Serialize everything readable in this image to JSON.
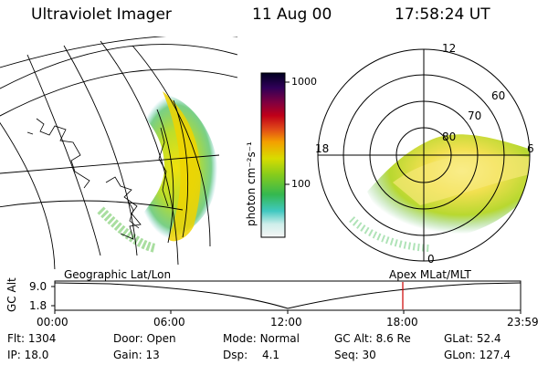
{
  "header": {
    "instrument": "Ultraviolet Imager",
    "date": "11 Aug 00",
    "time": "17:58:24 UT"
  },
  "colorbar": {
    "unit_label": "photon cm⁻²s⁻¹",
    "ticks": [
      "1000",
      "100"
    ],
    "scale": "log"
  },
  "left_panel": {
    "label": "Geographic Lat/Lon"
  },
  "right_panel": {
    "label": "Apex  MLat/MLT",
    "mlt_labels": [
      "12",
      "18",
      "6",
      "0"
    ],
    "lat_labels": [
      "60",
      "70",
      "80"
    ]
  },
  "altitude_plot": {
    "ylabel": "GC Alt",
    "yticks": [
      "9.0",
      "1.8"
    ],
    "xticks": [
      "00:00",
      "06:00",
      "12:00",
      "18:00",
      "23:59"
    ],
    "marker_time": "17:58"
  },
  "status": {
    "flt_label": "Flt:",
    "flt_value": "1304",
    "ip_label": "IP:",
    "ip_value": "18.0",
    "door_label": "Door:",
    "door_value": "Open",
    "gain_label": "Gain:",
    "gain_value": "13",
    "mode_label": "Mode:",
    "mode_value": "Normal",
    "dsp_label": "Dsp:",
    "dsp_value": "4.1",
    "gcalt_label": "GC Alt:",
    "gcalt_value": "8.6 Re",
    "seq_label": "Seq:",
    "seq_value": "30",
    "glat_label": "GLat:",
    "glat_value": "52.4",
    "glon_label": "GLon:",
    "glon_value": "127.4"
  },
  "colors": {
    "background": "#ffffff",
    "marker": "#cc0000",
    "ramp": [
      "#f4f4f4",
      "#bfe8e2",
      "#40c8c0",
      "#3cb84c",
      "#9ad21c",
      "#e8e000",
      "#f0a400",
      "#e04020",
      "#c00010",
      "#800030",
      "#2a0050",
      "#000030"
    ]
  }
}
